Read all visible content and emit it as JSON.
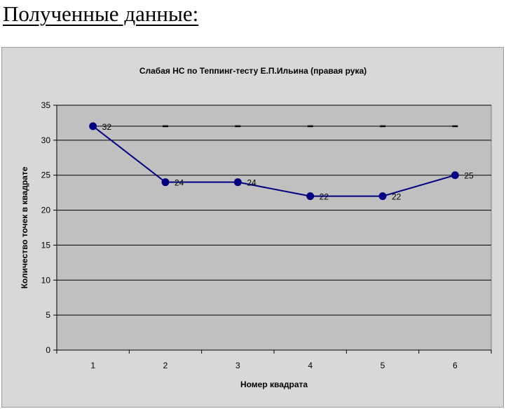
{
  "heading": "Полученные данные:",
  "colors": {
    "chart_area": "#d8d8d8",
    "plot_area": "#c0c0c0",
    "series": "#000080",
    "reference_line": "#000000",
    "gridline": "#000000"
  },
  "chart_data": {
    "type": "line",
    "title": "Слабая НС по Теппинг-тесту Е.П.Ильина (правая рука)",
    "xlabel": "Номер квадрата",
    "ylabel": "Количество точек в квадрате",
    "x": [
      "1",
      "2",
      "3",
      "4",
      "5",
      "6"
    ],
    "ylim": [
      0,
      35
    ],
    "yticks": [
      "0",
      "5",
      "10",
      "15",
      "20",
      "25",
      "30",
      "35"
    ],
    "grid": true,
    "legend": "none",
    "series": [
      {
        "values": [
          32,
          24,
          24,
          22,
          22,
          25
        ],
        "labels": [
          "32",
          "24",
          "24",
          "22",
          "22",
          "25"
        ],
        "style": "line-with-markers"
      },
      {
        "values": [
          32,
          32,
          32,
          32,
          32,
          32
        ],
        "style": "dash-markers"
      }
    ]
  }
}
